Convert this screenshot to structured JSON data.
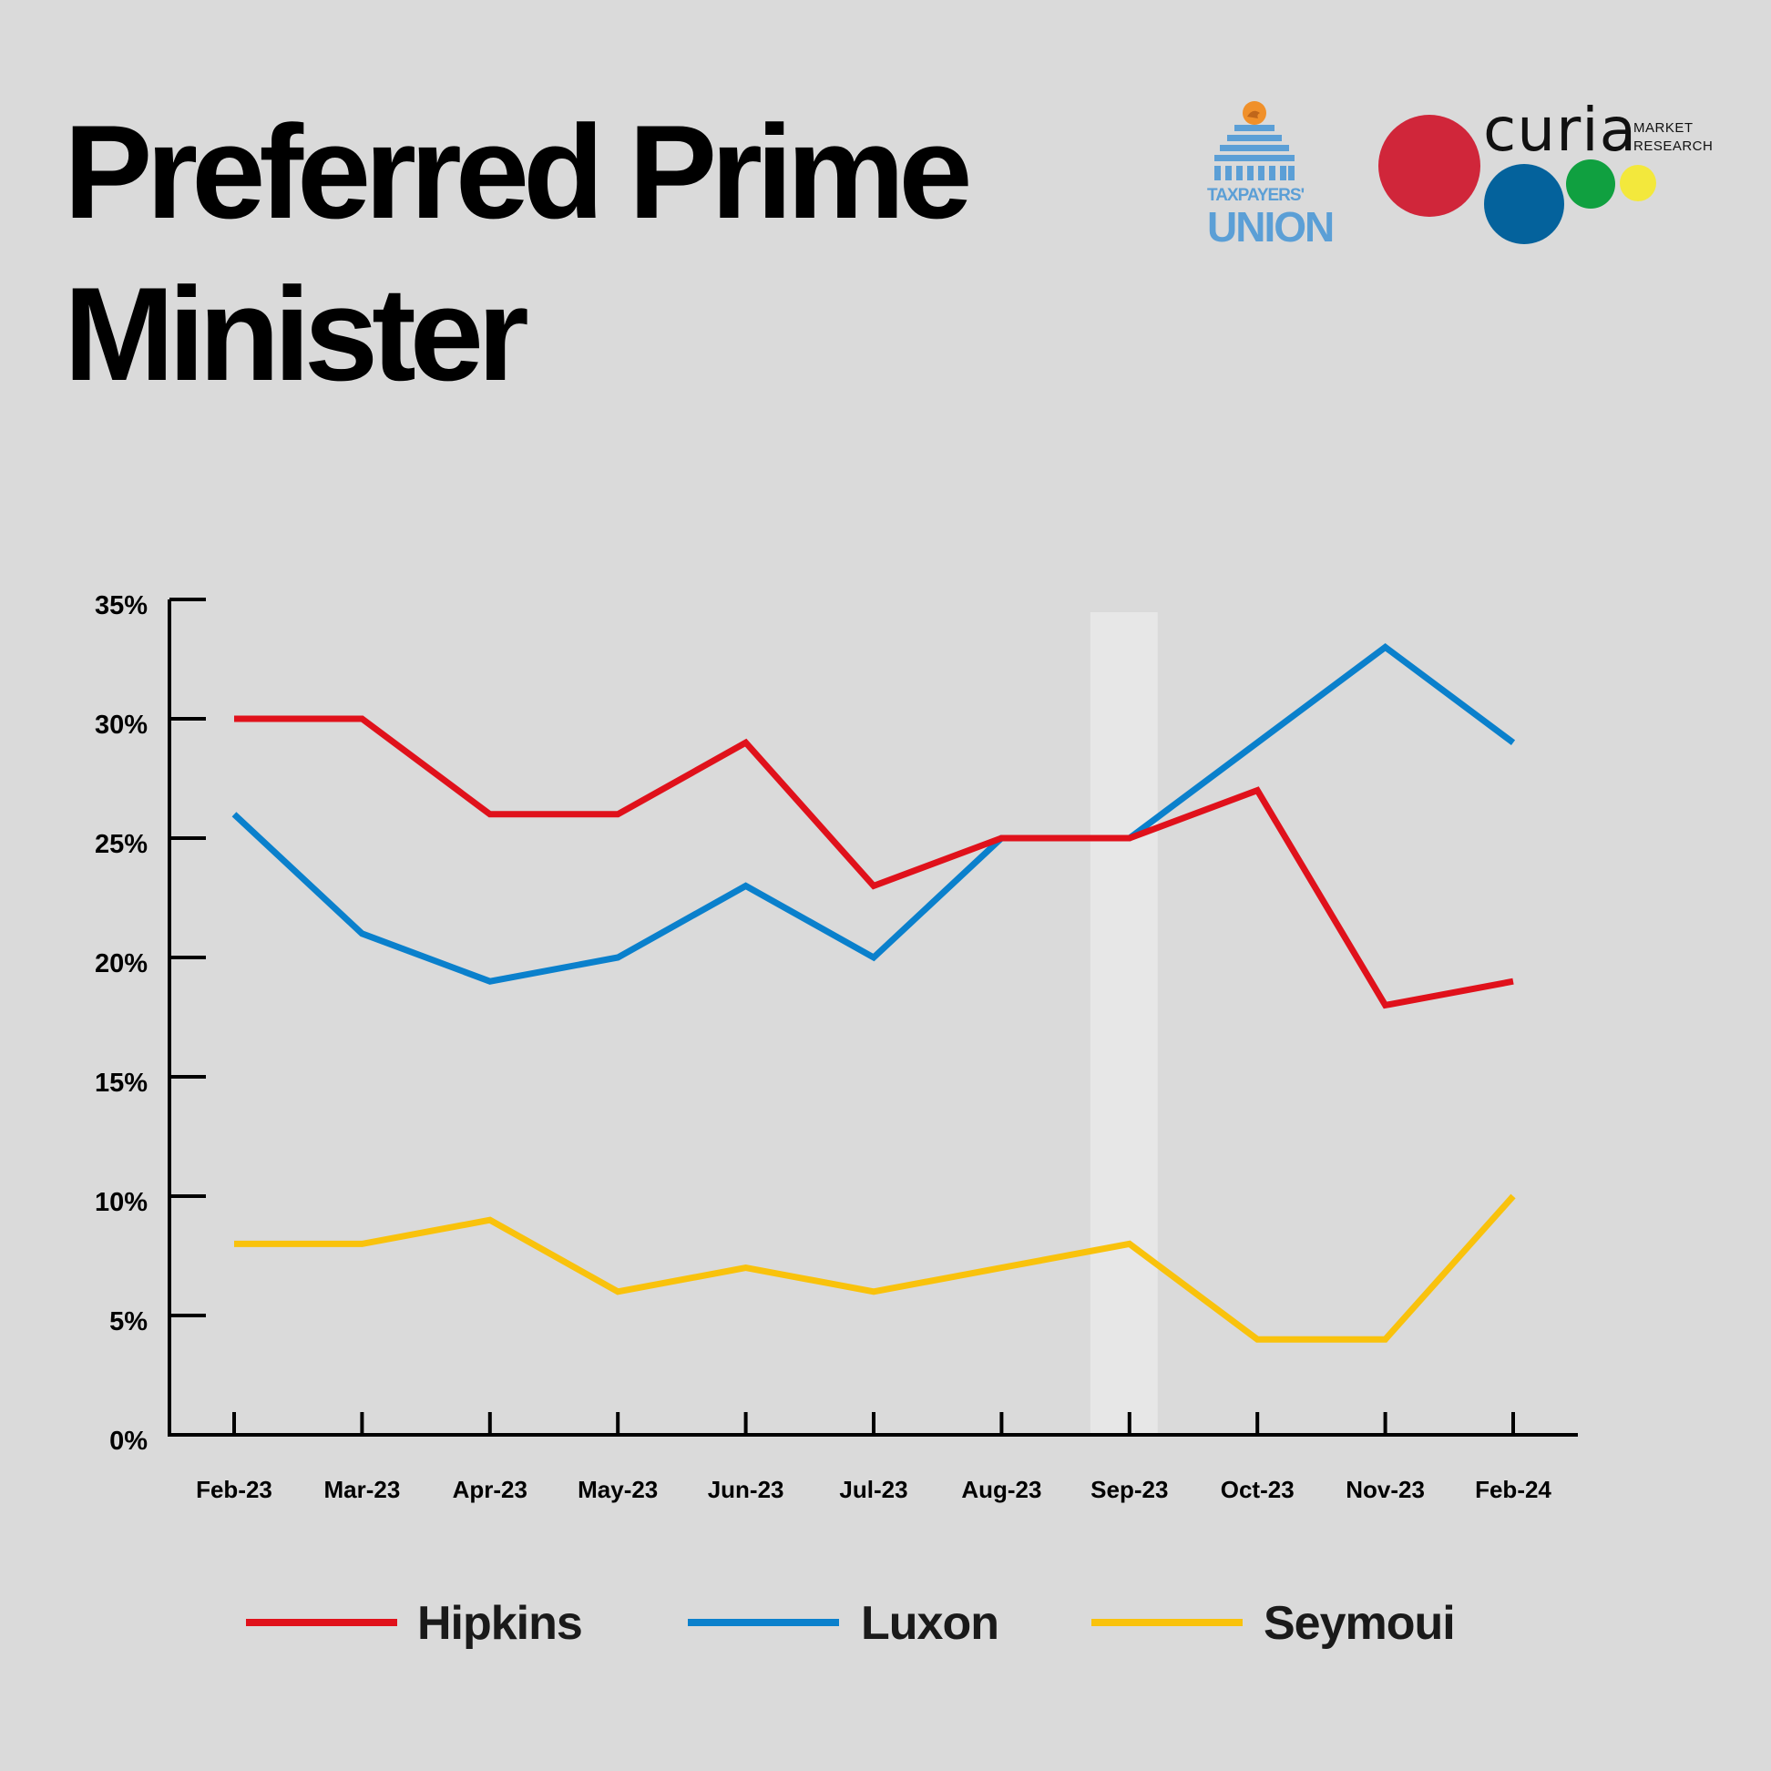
{
  "title": "Preferred Prime Minister",
  "logos": {
    "taxpayers_union_line1": "TAXPAYERS'",
    "taxpayers_union_line2": "UNION",
    "curia_word": "curia",
    "curia_sub1": "MARKET",
    "curia_sub2": "RESEARCH"
  },
  "chart_data": {
    "type": "line",
    "title": "Preferred Prime Minister",
    "xlabel": "",
    "ylabel": "",
    "categories": [
      "Feb-23",
      "Mar-23",
      "Apr-23",
      "May-23",
      "Jun-23",
      "Jul-23",
      "Aug-23",
      "Sep-23",
      "Oct-23",
      "Nov-23",
      "Feb-24"
    ],
    "ylim": [
      0,
      35
    ],
    "yticks": [
      "0%",
      "5%",
      "10%",
      "15%",
      "20%",
      "25%",
      "30%",
      "35%"
    ],
    "highlight_category": "Sep-23",
    "grid": false,
    "legend_position": "bottom",
    "series": [
      {
        "name": "Hipkins",
        "color": "#e0111b",
        "values": [
          30,
          30,
          26,
          26,
          29,
          23,
          25,
          25,
          27,
          18,
          19
        ]
      },
      {
        "name": "Luxon",
        "color": "#0a80cc",
        "values": [
          26,
          21,
          19,
          20,
          23,
          20,
          25,
          25,
          29,
          33,
          29
        ]
      },
      {
        "name": "Seymoui",
        "color": "#f9c20c",
        "values": [
          8,
          8,
          9,
          6,
          7,
          6,
          7,
          8,
          4,
          4,
          10
        ]
      }
    ]
  }
}
